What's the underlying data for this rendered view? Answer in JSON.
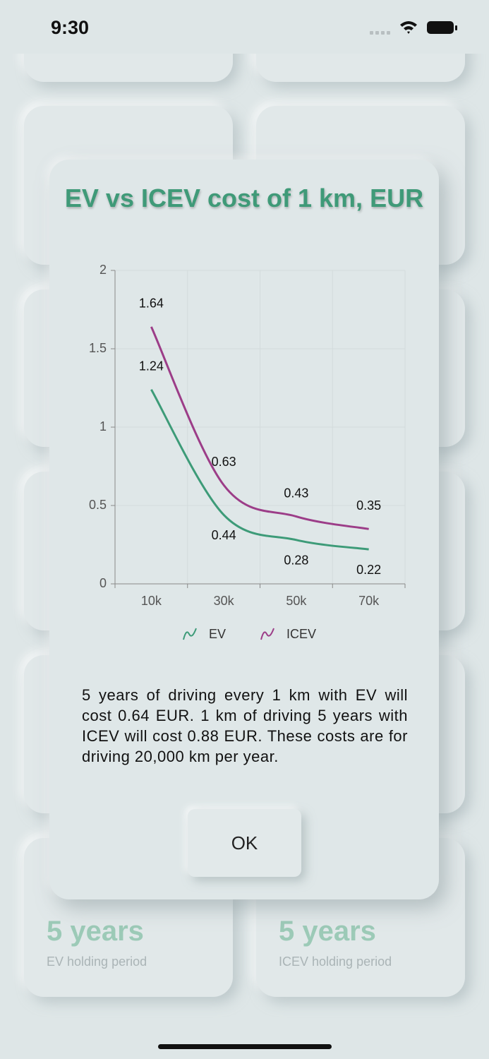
{
  "status_bar": {
    "time": "9:30"
  },
  "background_cards": [
    {
      "value": "5 years",
      "label": "EV holding period"
    },
    {
      "value": "5 years",
      "label": "ICEV holding period"
    }
  ],
  "chart_data": {
    "type": "line",
    "title": "EV vs ICEV cost of 1 km, EUR",
    "categories": [
      "10k",
      "30k",
      "50k",
      "70k"
    ],
    "series": [
      {
        "name": "EV",
        "color": "#3d9b78",
        "values": [
          1.24,
          0.44,
          0.28,
          0.22
        ]
      },
      {
        "name": "ICEV",
        "color": "#9c3d88",
        "values": [
          1.64,
          0.63,
          0.43,
          0.35
        ]
      }
    ],
    "ylim": [
      0,
      2
    ],
    "yticks": [
      0,
      0.5,
      1,
      1.5,
      2
    ],
    "grid": true,
    "legend": "bottom"
  },
  "message": "5 years of driving every 1 km with EV will cost 0.64 EUR. 1 km of driving 5 years with ICEV will cost 0.88 EUR. These costs are for driving 20,000 km per year.",
  "button": "OK"
}
